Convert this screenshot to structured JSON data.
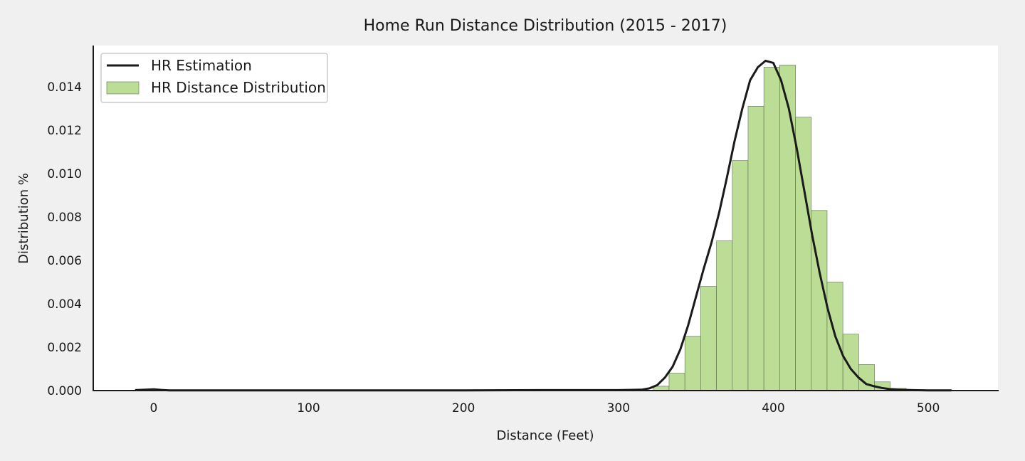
{
  "chart_data": {
    "type": "bar",
    "title": "Home Run Distance Distribution (2015 - 2017)",
    "xlabel": "Distance (Feet)",
    "ylabel": "Distribution %",
    "xlim": [
      -39,
      545
    ],
    "ylim": [
      0,
      0.0159
    ],
    "x_ticks": [
      "0",
      "100",
      "200",
      "300",
      "400",
      "500"
    ],
    "x_tick_values": [
      0,
      100,
      200,
      300,
      400,
      500
    ],
    "y_ticks": [
      "0.000",
      "0.002",
      "0.004",
      "0.006",
      "0.008",
      "0.010",
      "0.012",
      "0.014"
    ],
    "y_tick_values": [
      0,
      0.002,
      0.004,
      0.006,
      0.008,
      0.01,
      0.012,
      0.014
    ],
    "grid": false,
    "legend_position": "top-left",
    "legend": [
      {
        "label": "HR Estimation",
        "kind": "line"
      },
      {
        "label": "HR Distance Distribution",
        "kind": "bar"
      }
    ],
    "colors": {
      "bar_fill": "#bcdd96",
      "bar_edge": "#5a6e4a",
      "line": "#1a1a1a",
      "plot_bg": "#ffffff",
      "figure_bg": "#f0f0f0"
    },
    "series": [
      {
        "name": "HR Distance Distribution",
        "type": "bar",
        "bin_width": 10.2,
        "bin_starts": [
          322.5,
          332.7,
          342.9,
          353.1,
          363.3,
          373.5,
          383.7,
          393.9,
          404.1,
          414.3,
          424.5,
          434.7,
          444.9,
          455.1,
          465.3,
          475.5
        ],
        "values": [
          0.0002,
          0.0008,
          0.0025,
          0.0048,
          0.0069,
          0.0106,
          0.0131,
          0.0149,
          0.015,
          0.0126,
          0.0083,
          0.005,
          0.0026,
          0.0012,
          0.0004,
          0.0001
        ]
      },
      {
        "name": "HR Estimation",
        "type": "line",
        "x": [
          -12,
          -5,
          0,
          5,
          10,
          20,
          50,
          100,
          150,
          200,
          250,
          300,
          315,
          320,
          325,
          330,
          335,
          340,
          345,
          350,
          355,
          360,
          365,
          370,
          375,
          380,
          385,
          390,
          395,
          400,
          405,
          410,
          415,
          420,
          425,
          430,
          435,
          440,
          445,
          450,
          455,
          460,
          465,
          470,
          475,
          480,
          490,
          500,
          515
        ],
        "y": [
          2e-05,
          4e-05,
          6e-05,
          3e-05,
          1e-05,
          1e-05,
          1e-05,
          1e-05,
          1e-05,
          1e-05,
          2e-05,
          2e-05,
          4e-05,
          0.0001,
          0.00025,
          0.0006,
          0.0011,
          0.0019,
          0.003,
          0.0043,
          0.0056,
          0.0068,
          0.0082,
          0.0098,
          0.0115,
          0.013,
          0.0143,
          0.0149,
          0.0152,
          0.0151,
          0.0143,
          0.013,
          0.0112,
          0.0092,
          0.0072,
          0.0054,
          0.0038,
          0.0025,
          0.0016,
          0.001,
          0.0006,
          0.0003,
          0.0002,
          0.00012,
          7e-05,
          4e-05,
          2e-05,
          1e-05,
          1e-05
        ]
      }
    ]
  }
}
